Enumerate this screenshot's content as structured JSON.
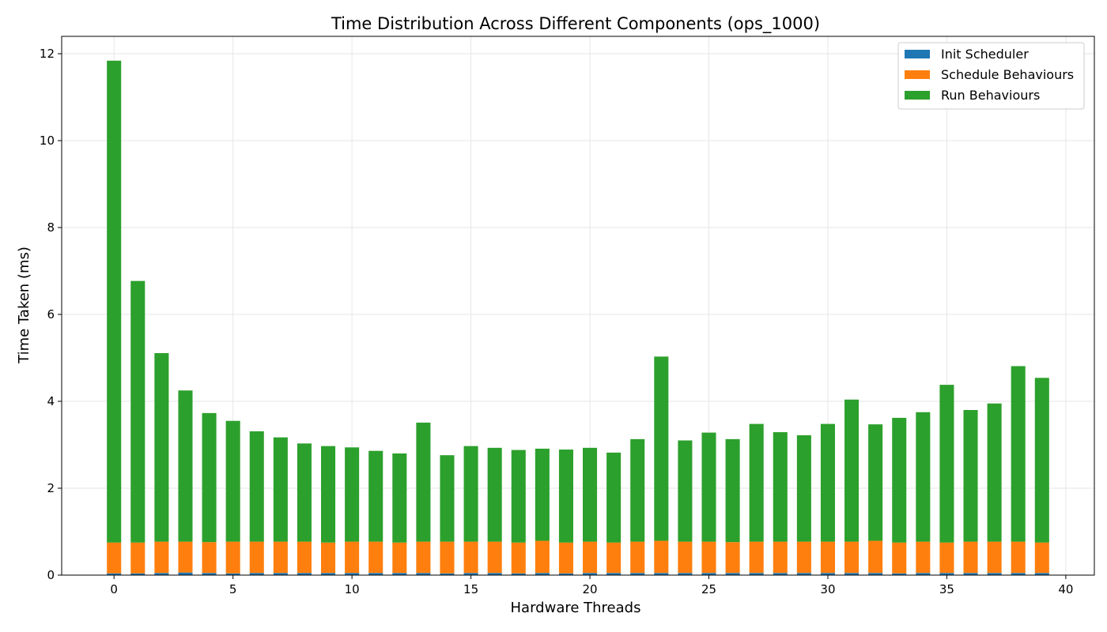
{
  "chart_data": {
    "type": "bar",
    "stacked": true,
    "title": "Time Distribution Across Different Components (ops_1000)",
    "xlabel": "Hardware Threads",
    "ylabel": "Time Taken (ms)",
    "xlim": [
      -2.2,
      41.2
    ],
    "ylim": [
      0,
      12.4
    ],
    "xticks": [
      0,
      5,
      10,
      15,
      20,
      25,
      30,
      35,
      40
    ],
    "yticks": [
      0,
      2,
      4,
      6,
      8,
      10,
      12
    ],
    "grid": true,
    "legend_position": "top-right",
    "x": [
      0,
      1,
      2,
      3,
      4,
      5,
      6,
      7,
      8,
      9,
      10,
      11,
      12,
      13,
      14,
      15,
      16,
      17,
      18,
      19,
      20,
      21,
      22,
      23,
      24,
      25,
      26,
      27,
      28,
      29,
      30,
      31,
      32,
      33,
      34,
      35,
      36,
      37,
      38,
      39
    ],
    "series": [
      {
        "name": "Init Scheduler",
        "color": "#1f77b4",
        "values": [
          0.04,
          0.04,
          0.05,
          0.06,
          0.05,
          0.04,
          0.05,
          0.05,
          0.05,
          0.05,
          0.05,
          0.05,
          0.05,
          0.05,
          0.04,
          0.05,
          0.05,
          0.04,
          0.05,
          0.04,
          0.05,
          0.05,
          0.05,
          0.05,
          0.05,
          0.05,
          0.05,
          0.05,
          0.05,
          0.05,
          0.05,
          0.05,
          0.05,
          0.04,
          0.05,
          0.05,
          0.05,
          0.05,
          0.05,
          0.05
        ]
      },
      {
        "name": "Schedule Behaviours",
        "color": "#ff7f0e",
        "values": [
          0.71,
          0.71,
          0.72,
          0.71,
          0.71,
          0.73,
          0.72,
          0.72,
          0.72,
          0.7,
          0.72,
          0.72,
          0.7,
          0.72,
          0.73,
          0.72,
          0.72,
          0.71,
          0.74,
          0.71,
          0.72,
          0.7,
          0.72,
          0.74,
          0.72,
          0.72,
          0.71,
          0.72,
          0.72,
          0.72,
          0.72,
          0.72,
          0.74,
          0.71,
          0.72,
          0.7,
          0.72,
          0.72,
          0.72,
          0.7
        ]
      },
      {
        "name": "Run Behaviours",
        "color": "#2ca02c",
        "values": [
          11.09,
          6.02,
          4.34,
          3.48,
          2.97,
          2.78,
          2.54,
          2.4,
          2.26,
          2.22,
          2.17,
          2.09,
          2.05,
          2.74,
          1.99,
          2.2,
          2.16,
          2.13,
          2.12,
          2.14,
          2.16,
          2.07,
          2.36,
          4.24,
          2.33,
          2.51,
          2.37,
          2.71,
          2.52,
          2.45,
          2.71,
          3.27,
          2.68,
          2.87,
          2.98,
          3.63,
          3.03,
          3.18,
          4.04,
          3.79
        ]
      }
    ]
  }
}
